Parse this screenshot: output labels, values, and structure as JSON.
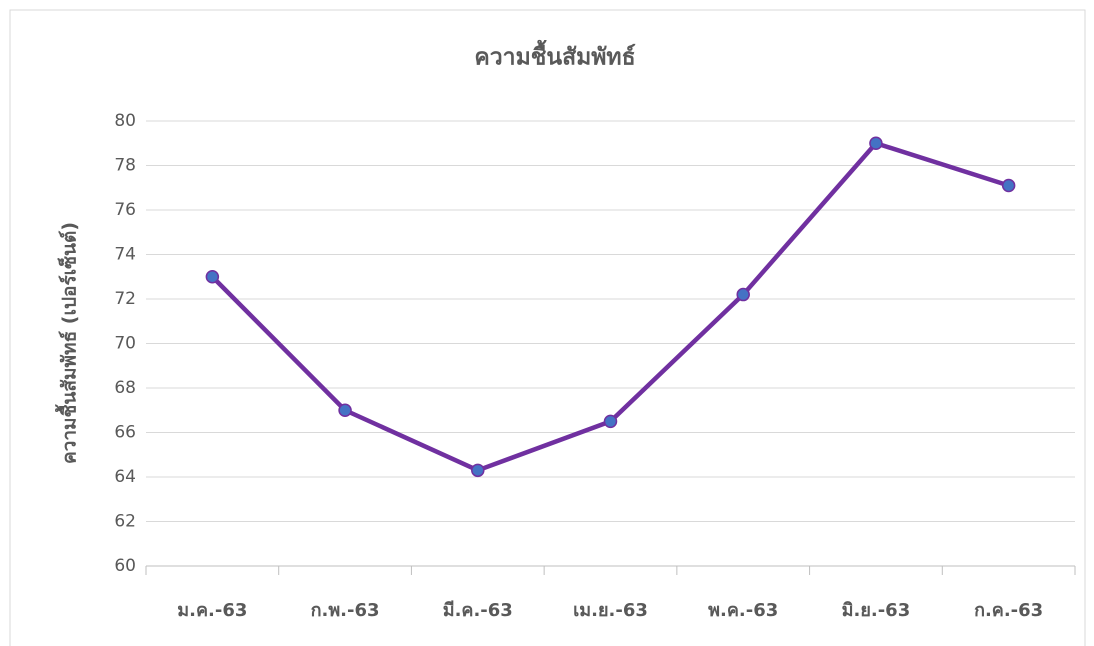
{
  "chart_data": {
    "type": "line",
    "title": "ความชื้นสัมพัทธ์",
    "y_label": "ความชื้นสัมพัทธ์ (เปอร์เซ็นต์)",
    "categories": [
      "ม.ค.-63",
      "ก.พ.-63",
      "มี.ค.-63",
      "เม.ย.-63",
      "พ.ค.-63",
      "มิ.ย.-63",
      "ก.ค.-63"
    ],
    "series": [
      {
        "name": "ความชื้นสัมพัทธ์",
        "color": "#7030a0",
        "marker_color": "#4472c4",
        "values": [
          73,
          67,
          64.3,
          66.5,
          72.2,
          79,
          77.1
        ]
      }
    ],
    "ylim": [
      60,
      80
    ],
    "yticks": [
      60,
      62,
      64,
      66,
      68,
      70,
      72,
      74,
      76,
      78,
      80
    ],
    "grid": true
  }
}
